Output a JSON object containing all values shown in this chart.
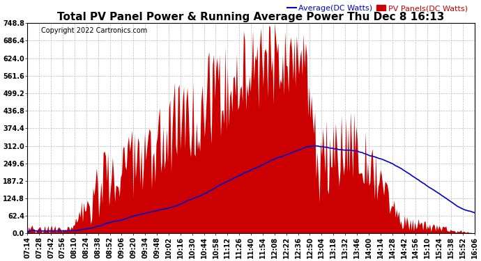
{
  "title": "Total PV Panel Power & Running Average Power Thu Dec 8 16:13",
  "copyright": "Copyright 2022 Cartronics.com",
  "legend_avg": "Average(DC Watts)",
  "legend_pv": "PV Panels(DC Watts)",
  "ylabel_values": [
    0.0,
    62.4,
    124.8,
    187.2,
    249.6,
    312.0,
    374.4,
    436.8,
    499.2,
    561.6,
    624.0,
    686.4,
    748.8
  ],
  "ymax": 748.8,
  "ymin": 0.0,
  "bg_color": "#ffffff",
  "plot_bg_color": "#ffffff",
  "grid_color": "#bbbbbb",
  "fill_color": "#cc0000",
  "line_color_avg": "#0000cc",
  "title_fontsize": 11,
  "copyright_fontsize": 7,
  "legend_fontsize": 8,
  "tick_fontsize": 7,
  "x_tick_labels": [
    "07:14",
    "07:28",
    "07:42",
    "07:56",
    "08:10",
    "08:24",
    "08:38",
    "08:52",
    "09:06",
    "09:20",
    "09:34",
    "09:48",
    "10:02",
    "10:16",
    "10:30",
    "10:44",
    "10:58",
    "11:12",
    "11:26",
    "11:40",
    "11:54",
    "12:08",
    "12:22",
    "12:36",
    "12:50",
    "13:04",
    "13:18",
    "13:32",
    "13:46",
    "14:00",
    "14:14",
    "14:28",
    "14:42",
    "14:56",
    "15:10",
    "15:24",
    "15:38",
    "15:52",
    "16:06"
  ]
}
